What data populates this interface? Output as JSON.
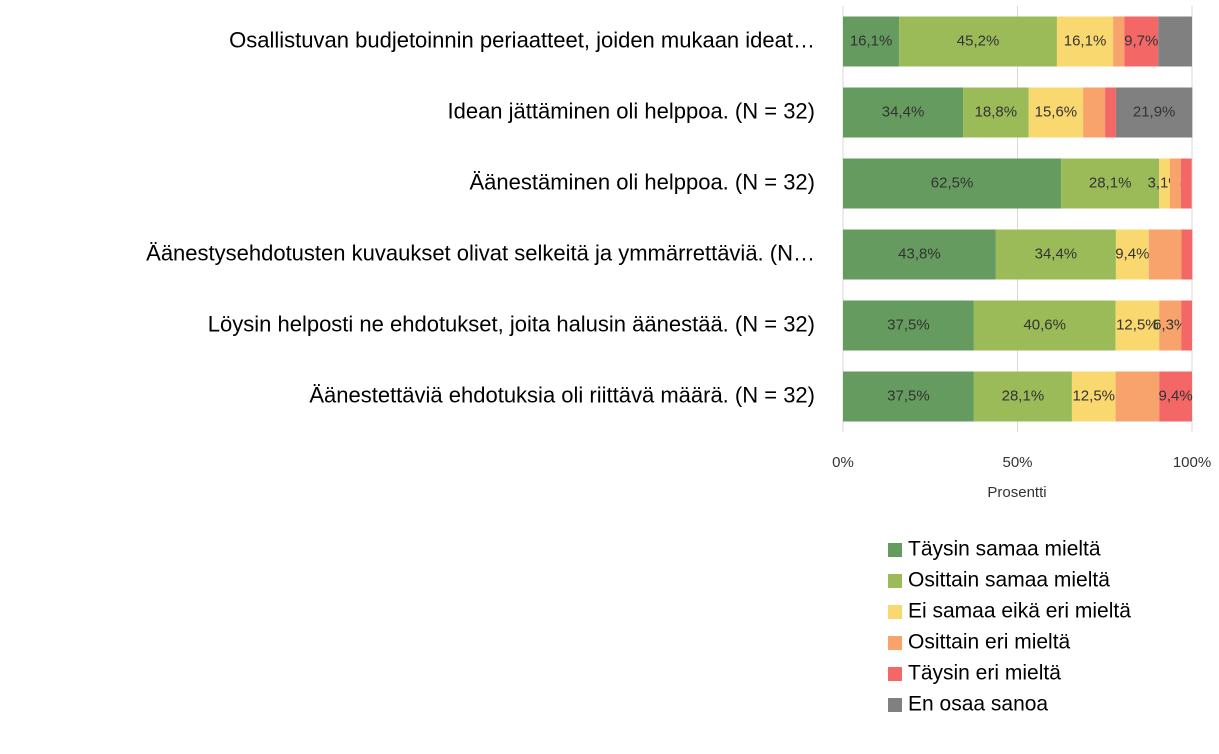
{
  "chart_data": {
    "type": "stacked-barh",
    "categories": [
      "Osallistuvan budjetoinnin periaatteet, joiden mukaan ideat…",
      "Idean jättäminen oli helppoa. (N = 32)",
      "Äänestäminen oli helppoa. (N = 32)",
      "Äänestysehdotusten kuvaukset olivat selkeitä ja ymmärrettäviä. (N…",
      "Löysin helposti ne ehdotukset, joita halusin äänestää. (N = 32)",
      "Äänestettäviä ehdotuksia oli riittävä määrä. (N = 32)"
    ],
    "series": [
      {
        "name": "Täysin samaa mieltä",
        "color": "#659b5e",
        "values": [
          16.1,
          34.4,
          62.5,
          43.8,
          37.5,
          37.5
        ],
        "value_labels": [
          "16,1%",
          "34,4%",
          "62,5%",
          "43,8%",
          "37,5%",
          "37,5%"
        ]
      },
      {
        "name": "Osittain samaa mieltä",
        "color": "#9bbb59",
        "values": [
          45.2,
          18.8,
          28.1,
          34.4,
          40.6,
          28.1
        ],
        "value_labels": [
          "45,2%",
          "18,8%",
          "28,1%",
          "34,4%",
          "40,6%",
          "28,1%"
        ]
      },
      {
        "name": "Ei samaa eikä eri mieltä",
        "color": "#f9d870",
        "values": [
          16.1,
          15.6,
          3.1,
          9.4,
          12.5,
          12.5
        ],
        "value_labels": [
          "16,1%",
          "15,6%",
          "3,1%",
          "9,4%",
          "12,5%",
          "12,5%"
        ]
      },
      {
        "name": "Osittain eri mieltä",
        "color": "#f8a26c",
        "values": [
          3.2,
          6.3,
          3.1,
          9.4,
          6.3,
          12.5
        ],
        "value_labels": [
          null,
          null,
          null,
          null,
          "6,3%",
          null
        ]
      },
      {
        "name": "Täysin eri mieltä",
        "color": "#f46767",
        "values": [
          9.7,
          3.1,
          3.1,
          3.1,
          3.1,
          9.4
        ],
        "value_labels": [
          "9,7%",
          null,
          null,
          null,
          null,
          "9,4%"
        ]
      },
      {
        "name": "En osaa sanoa",
        "color": "#808080",
        "values": [
          9.7,
          21.9,
          0,
          0,
          0,
          0
        ],
        "value_labels": [
          null,
          "21,9%",
          null,
          null,
          null,
          null
        ]
      }
    ],
    "xlim": [
      0,
      100
    ],
    "xticks": [
      {
        "value": 0,
        "label": "0%"
      },
      {
        "value": 50,
        "label": "50%"
      },
      {
        "value": 100,
        "label": "100%"
      }
    ],
    "xlabel": "Prosentti",
    "grid": true,
    "legend": "bottom-right"
  }
}
